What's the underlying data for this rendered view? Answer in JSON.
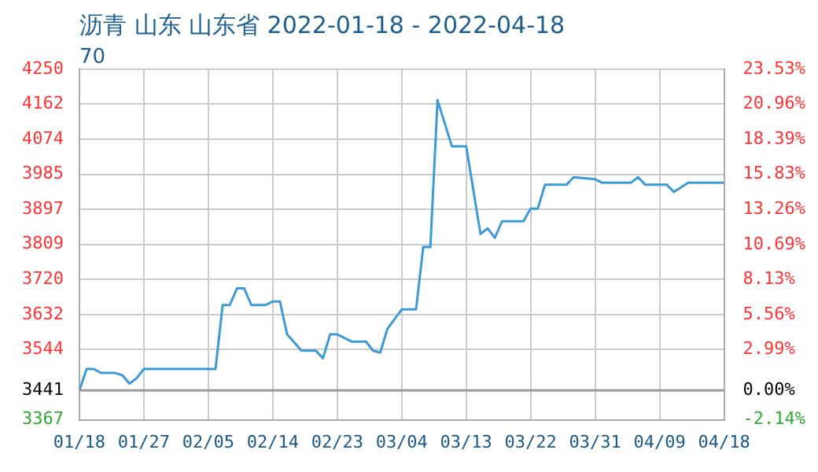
{
  "chart_data": {
    "type": "line",
    "title": "沥青 山东 山东省 2022-01-18 - 2022-04-18",
    "subtitle": "70",
    "x": [
      "2022-01-18",
      "2022-01-19",
      "2022-01-20",
      "2022-01-21",
      "2022-01-23",
      "2022-01-24",
      "2022-01-25",
      "2022-01-26",
      "2022-01-27",
      "2022-02-06",
      "2022-02-07",
      "2022-02-08",
      "2022-02-09",
      "2022-02-10",
      "2022-02-11",
      "2022-02-13",
      "2022-02-14",
      "2022-02-15",
      "2022-02-16",
      "2022-02-18",
      "2022-02-20",
      "2022-02-21",
      "2022-02-22",
      "2022-02-23",
      "2022-02-25",
      "2022-02-27",
      "2022-02-28",
      "2022-03-01",
      "2022-03-02",
      "2022-03-04",
      "2022-03-06",
      "2022-03-07",
      "2022-03-08",
      "2022-03-09",
      "2022-03-11",
      "2022-03-13",
      "2022-03-15",
      "2022-03-16",
      "2022-03-17",
      "2022-03-18",
      "2022-03-21",
      "2022-03-22",
      "2022-03-23",
      "2022-03-24",
      "2022-03-27",
      "2022-03-28",
      "2022-03-31",
      "2022-04-01",
      "2022-04-05",
      "2022-04-06",
      "2022-04-07",
      "2022-04-10",
      "2022-04-11",
      "2022-04-13",
      "2022-04-18"
    ],
    "series": [
      {
        "color": "#3d9ad6",
        "values": [
          3441,
          3495,
          3495,
          3485,
          3485,
          3479,
          3458,
          3472,
          3495,
          3495,
          3656,
          3656,
          3698,
          3698,
          3656,
          3656,
          3665,
          3665,
          3582,
          3541,
          3541,
          3522,
          3582,
          3582,
          3564,
          3564,
          3541,
          3536,
          3596,
          3645,
          3645,
          3802,
          3802,
          4172,
          4056,
          4056,
          3835,
          3849,
          3825,
          3867,
          3867,
          3899,
          3899,
          3959,
          3959,
          3978,
          3973,
          3964,
          3964,
          3978,
          3959,
          3959,
          3941,
          3964,
          3964
        ]
      }
    ],
    "xlim": [
      "2022-01-18",
      "2022-04-18"
    ],
    "xticks": [
      {
        "value": "2022-01-18",
        "label": "01/18"
      },
      {
        "value": "2022-01-27",
        "label": "01/27"
      },
      {
        "value": "2022-02-05",
        "label": "02/05"
      },
      {
        "value": "2022-02-14",
        "label": "02/14"
      },
      {
        "value": "2022-02-23",
        "label": "02/23"
      },
      {
        "value": "2022-03-04",
        "label": "03/04"
      },
      {
        "value": "2022-03-13",
        "label": "03/13"
      },
      {
        "value": "2022-03-22",
        "label": "03/22"
      },
      {
        "value": "2022-03-31",
        "label": "03/31"
      },
      {
        "value": "2022-04-09",
        "label": "04/09"
      },
      {
        "value": "2022-04-18",
        "label": "04/18"
      }
    ],
    "ylim": [
      3367,
      4250
    ],
    "yticks": [
      3367,
      3441,
      3544,
      3632,
      3720,
      3809,
      3897,
      3985,
      4074,
      4162,
      4250
    ],
    "y2lim": [
      -2.14,
      23.53
    ],
    "y2ticks": [
      {
        "value": -2.14,
        "label": "-2.14%"
      },
      {
        "value": 0,
        "label": "0.00%"
      },
      {
        "value": 2.99,
        "label": "2.99%"
      },
      {
        "value": 5.56,
        "label": "5.56%"
      },
      {
        "value": 8.13,
        "label": "8.13%"
      },
      {
        "value": 10.69,
        "label": "10.69%"
      },
      {
        "value": 13.26,
        "label": "13.26%"
      },
      {
        "value": 15.83,
        "label": "15.83%"
      },
      {
        "value": 18.39,
        "label": "18.39%"
      },
      {
        "value": 20.96,
        "label": "20.96%"
      },
      {
        "value": 23.53,
        "label": "23.53%"
      }
    ],
    "ref_lines": [
      {
        "axis": "y",
        "value": 3441,
        "color": "#999999"
      }
    ],
    "grid": true,
    "legend": false,
    "marker": "none",
    "line_style": "solid"
  }
}
